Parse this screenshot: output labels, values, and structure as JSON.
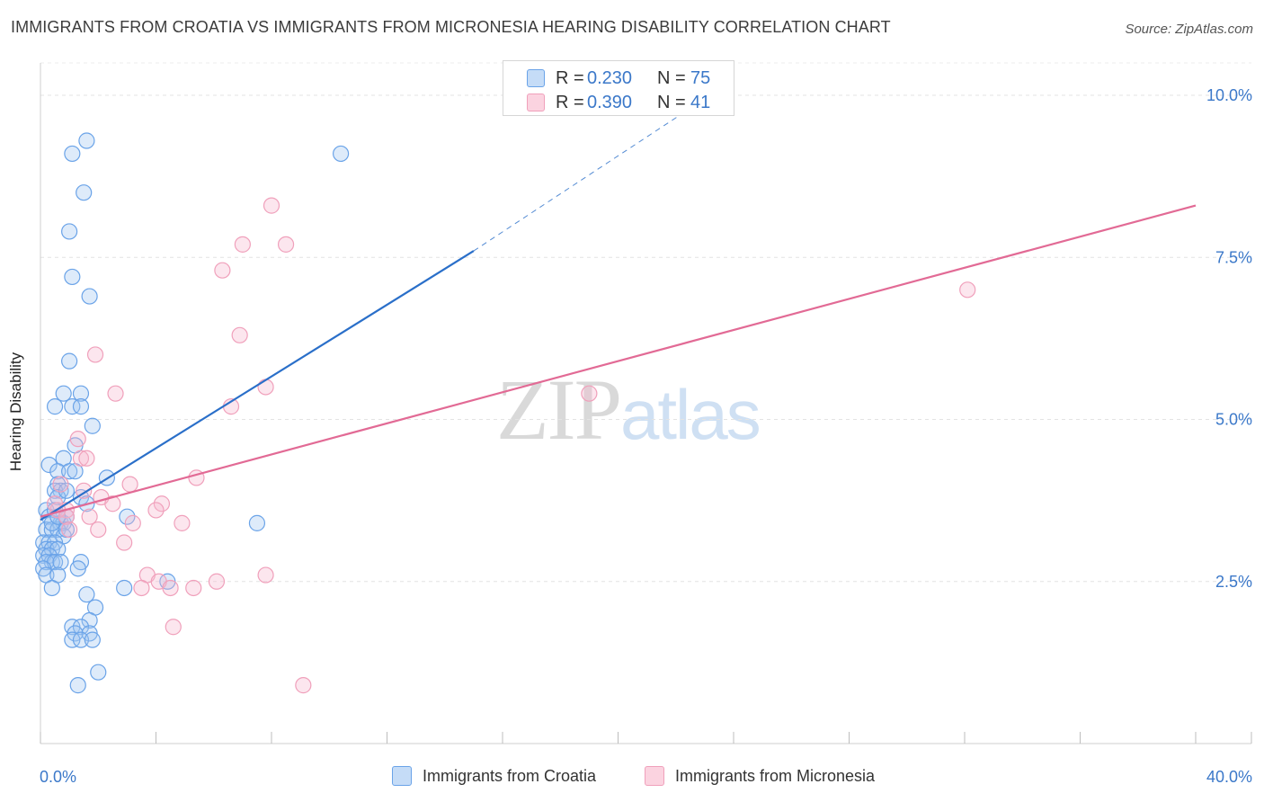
{
  "header": {
    "title": "IMMIGRANTS FROM CROATIA VS IMMIGRANTS FROM MICRONESIA HEARING DISABILITY CORRELATION CHART",
    "source": "Source: ZipAtlas.com"
  },
  "watermark": {
    "zip": "ZIP",
    "atlas": "atlas"
  },
  "legend_top": {
    "rows": [
      {
        "r_label": "R =",
        "r_value": "0.230",
        "n_label": "N =",
        "n_value": "75"
      },
      {
        "r_label": "R =",
        "r_value": "0.390",
        "n_label": "N =",
        "n_value": "41"
      }
    ]
  },
  "chart_data": {
    "type": "scatter",
    "title": "IMMIGRANTS FROM CROATIA VS IMMIGRANTS FROM MICRONESIA HEARING DISABILITY CORRELATION CHART",
    "xlabel": "",
    "ylabel": "Hearing Disability",
    "xlim": [
      0,
      40
    ],
    "ylim": [
      0,
      10.5
    ],
    "x_tick_labels": [
      "0.0%",
      "40.0%"
    ],
    "y_ticks": [
      2.5,
      5.0,
      7.5,
      10.0
    ],
    "y_tick_labels": [
      "2.5%",
      "5.0%",
      "7.5%",
      "10.0%"
    ],
    "grid": true,
    "legend_position": "bottom",
    "series": [
      {
        "name": "Immigrants from Croatia",
        "color": "#6aa3e8",
        "line_color": "#2a6fc9",
        "R": 0.23,
        "N": 75,
        "trend": {
          "x0": 0.0,
          "y0": 3.45,
          "x1": 15.0,
          "y1": 7.6,
          "dash_to_x": 22.5,
          "dash_to_y": 9.8
        },
        "points": [
          [
            1.6,
            9.3
          ],
          [
            1.1,
            9.1
          ],
          [
            10.4,
            9.1
          ],
          [
            1.5,
            8.5
          ],
          [
            1.0,
            7.9
          ],
          [
            1.1,
            7.2
          ],
          [
            1.7,
            6.9
          ],
          [
            1.0,
            5.9
          ],
          [
            0.8,
            5.4
          ],
          [
            0.5,
            5.2
          ],
          [
            1.4,
            5.4
          ],
          [
            1.1,
            5.2
          ],
          [
            1.4,
            5.2
          ],
          [
            1.8,
            4.9
          ],
          [
            1.2,
            4.6
          ],
          [
            0.8,
            4.4
          ],
          [
            0.3,
            4.3
          ],
          [
            0.6,
            4.2
          ],
          [
            1.0,
            4.2
          ],
          [
            1.2,
            4.2
          ],
          [
            2.3,
            4.1
          ],
          [
            0.6,
            4.0
          ],
          [
            0.7,
            3.9
          ],
          [
            0.5,
            3.9
          ],
          [
            0.6,
            3.8
          ],
          [
            1.4,
            3.8
          ],
          [
            0.2,
            3.6
          ],
          [
            1.6,
            3.7
          ],
          [
            0.3,
            3.5
          ],
          [
            0.5,
            3.6
          ],
          [
            0.7,
            3.4
          ],
          [
            0.8,
            3.4
          ],
          [
            0.9,
            3.5
          ],
          [
            3.0,
            3.5
          ],
          [
            7.5,
            3.4
          ],
          [
            0.2,
            3.3
          ],
          [
            0.4,
            3.3
          ],
          [
            0.6,
            3.3
          ],
          [
            0.8,
            3.2
          ],
          [
            0.9,
            3.3
          ],
          [
            0.1,
            3.1
          ],
          [
            0.3,
            3.1
          ],
          [
            0.5,
            3.1
          ],
          [
            0.2,
            3.0
          ],
          [
            0.4,
            3.0
          ],
          [
            0.6,
            3.0
          ],
          [
            0.1,
            2.9
          ],
          [
            0.3,
            2.9
          ],
          [
            0.4,
            2.8
          ],
          [
            0.2,
            2.8
          ],
          [
            0.5,
            2.8
          ],
          [
            0.7,
            2.8
          ],
          [
            1.4,
            2.8
          ],
          [
            1.3,
            2.7
          ],
          [
            0.1,
            2.7
          ],
          [
            0.2,
            2.6
          ],
          [
            0.6,
            2.6
          ],
          [
            4.4,
            2.5
          ],
          [
            0.4,
            2.4
          ],
          [
            1.6,
            2.3
          ],
          [
            2.9,
            2.4
          ],
          [
            1.9,
            2.1
          ],
          [
            1.7,
            1.9
          ],
          [
            1.1,
            1.8
          ],
          [
            1.4,
            1.8
          ],
          [
            1.2,
            1.7
          ],
          [
            1.7,
            1.7
          ],
          [
            1.1,
            1.6
          ],
          [
            1.4,
            1.6
          ],
          [
            1.8,
            1.6
          ],
          [
            2.0,
            1.1
          ],
          [
            1.3,
            0.9
          ],
          [
            0.4,
            3.4
          ],
          [
            0.9,
            3.9
          ],
          [
            0.6,
            3.5
          ]
        ]
      },
      {
        "name": "Immigrants from Micronesia",
        "color": "#f0a0bb",
        "line_color": "#e26a95",
        "R": 0.39,
        "N": 41,
        "trend": {
          "x0": 0.0,
          "y0": 3.5,
          "x1": 40.0,
          "y1": 8.3
        },
        "points": [
          [
            8.0,
            8.3
          ],
          [
            7.0,
            7.7
          ],
          [
            8.5,
            7.7
          ],
          [
            6.3,
            7.3
          ],
          [
            32.1,
            7.0
          ],
          [
            6.9,
            6.3
          ],
          [
            1.9,
            6.0
          ],
          [
            7.8,
            5.5
          ],
          [
            2.6,
            5.4
          ],
          [
            19.0,
            5.4
          ],
          [
            6.6,
            5.2
          ],
          [
            1.3,
            4.7
          ],
          [
            1.4,
            4.4
          ],
          [
            1.6,
            4.4
          ],
          [
            5.4,
            4.1
          ],
          [
            3.1,
            4.0
          ],
          [
            0.7,
            4.0
          ],
          [
            1.5,
            3.9
          ],
          [
            2.1,
            3.8
          ],
          [
            2.5,
            3.7
          ],
          [
            4.2,
            3.7
          ],
          [
            4.0,
            3.6
          ],
          [
            0.9,
            3.6
          ],
          [
            0.6,
            3.6
          ],
          [
            1.7,
            3.5
          ],
          [
            3.2,
            3.4
          ],
          [
            4.9,
            3.4
          ],
          [
            0.9,
            3.5
          ],
          [
            2.0,
            3.3
          ],
          [
            2.9,
            3.1
          ],
          [
            7.8,
            2.6
          ],
          [
            3.7,
            2.6
          ],
          [
            4.1,
            2.5
          ],
          [
            3.5,
            2.4
          ],
          [
            4.5,
            2.4
          ],
          [
            5.3,
            2.4
          ],
          [
            6.1,
            2.5
          ],
          [
            4.6,
            1.8
          ],
          [
            9.1,
            0.9
          ],
          [
            0.5,
            3.7
          ],
          [
            1.0,
            3.3
          ]
        ]
      }
    ]
  }
}
